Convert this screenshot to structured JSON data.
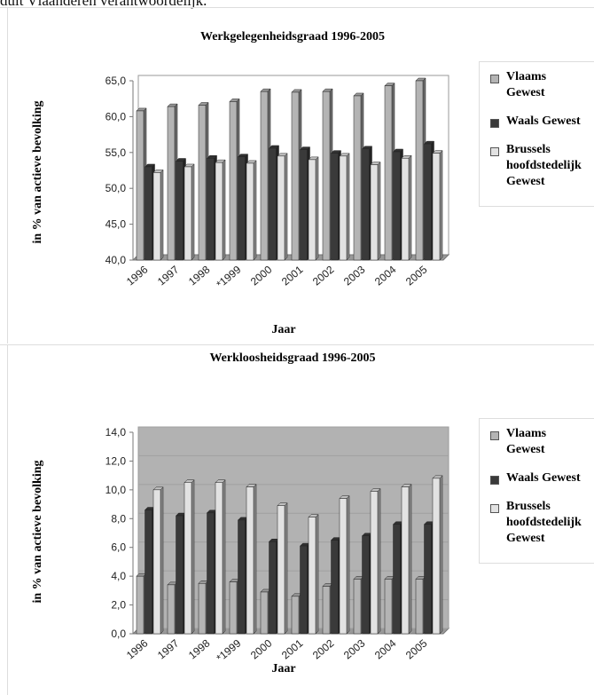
{
  "header_text": "dult Vlaanderen verantwoordelijk.",
  "chart_data": [
    {
      "type": "bar",
      "title": "Werkgelegenheidsgraad 1996-2005",
      "x_label": "Jaar",
      "y_label": "in % van actieve bevolking",
      "categories": [
        "1996",
        "1997",
        "1998",
        "*1999",
        "2000",
        "2001",
        "2002",
        "2003",
        "2004",
        "2005"
      ],
      "series": [
        {
          "name": "Vlaams Gewest",
          "color": "#b4b4b4",
          "values": [
            60.8,
            61.4,
            61.6,
            62.1,
            63.5,
            63.4,
            63.5,
            62.9,
            64.3,
            65.0
          ]
        },
        {
          "name": "Waals Gewest",
          "color": "#3a3a3a",
          "values": [
            53.0,
            53.8,
            54.2,
            54.4,
            55.6,
            55.4,
            54.9,
            55.5,
            55.1,
            56.2
          ]
        },
        {
          "name": "Brussels hoofdstedelijk Gewest",
          "color": "#e2e2e2",
          "values": [
            52.2,
            53.0,
            53.6,
            53.5,
            54.5,
            54.0,
            54.5,
            53.3,
            54.2,
            54.9
          ]
        }
      ],
      "ylim": [
        40,
        65
      ],
      "yticks": [
        {
          "value": 40,
          "label": "40,0"
        },
        {
          "value": 45,
          "label": "45,0"
        },
        {
          "value": 50,
          "label": "50,0"
        },
        {
          "value": 55,
          "label": "55,0"
        },
        {
          "value": 60,
          "label": "60,0"
        },
        {
          "value": 65,
          "label": "65,0"
        }
      ],
      "wall": "#ffffff"
    },
    {
      "type": "bar",
      "title": "Werkloosheidsgraad 1996-2005",
      "x_label": "Jaar",
      "y_label": "in % van actieve bevolking",
      "categories": [
        "1996",
        "1997",
        "1998",
        "*1999",
        "2000",
        "2001",
        "2002",
        "2003",
        "2004",
        "2005"
      ],
      "series": [
        {
          "name": "Vlaams Gewest",
          "color": "#b4b4b4",
          "values": [
            4.0,
            3.4,
            3.5,
            3.6,
            2.9,
            2.6,
            3.3,
            3.8,
            3.8,
            3.8
          ]
        },
        {
          "name": "Waals Gewest",
          "color": "#3a3a3a",
          "values": [
            8.6,
            8.2,
            8.4,
            7.9,
            6.4,
            6.1,
            6.5,
            6.8,
            7.6,
            7.6
          ]
        },
        {
          "name": "Brussels hoofdstedelijk Gewest",
          "color": "#e2e2e2",
          "values": [
            10.0,
            10.5,
            10.5,
            10.2,
            8.9,
            8.1,
            9.4,
            9.9,
            10.2,
            10.8
          ]
        }
      ],
      "ylim": [
        0,
        14
      ],
      "yticks": [
        {
          "value": 0,
          "label": "0,0"
        },
        {
          "value": 2,
          "label": "2,0"
        },
        {
          "value": 4,
          "label": "4,0"
        },
        {
          "value": 6,
          "label": "6,0"
        },
        {
          "value": 8,
          "label": "8,0"
        },
        {
          "value": 10,
          "label": "10,0"
        },
        {
          "value": 12,
          "label": "12,0"
        },
        {
          "value": 14,
          "label": "14,0"
        }
      ],
      "wall": "#b2b2b2"
    }
  ]
}
